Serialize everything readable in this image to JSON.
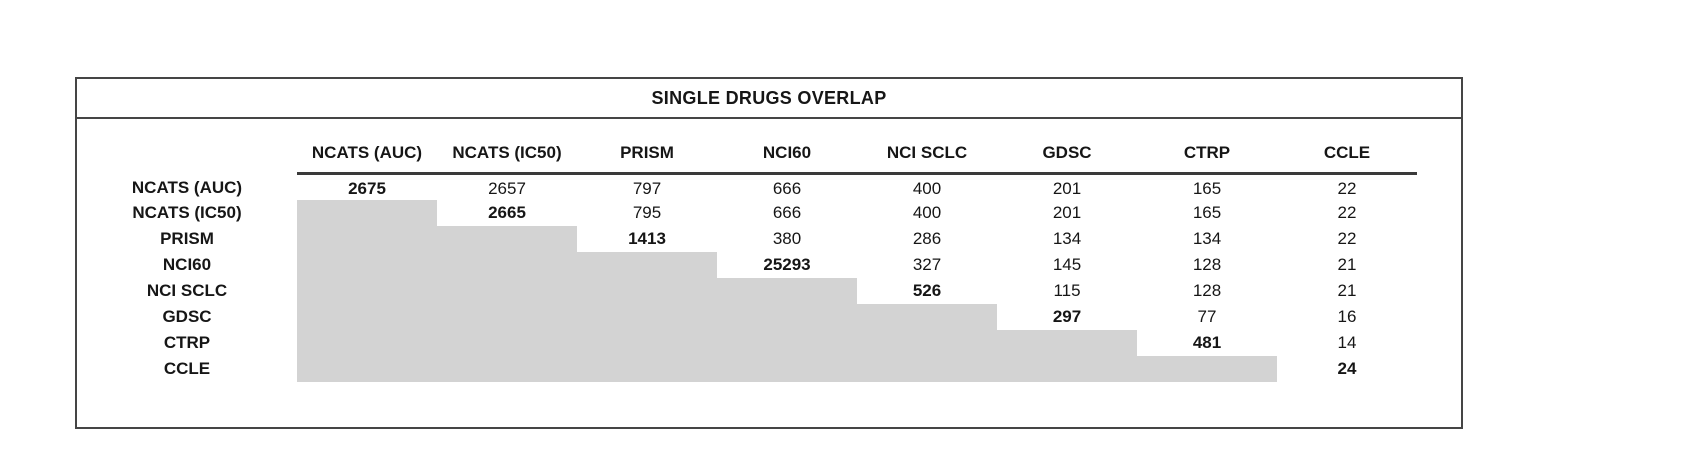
{
  "colors": {
    "shade": "#d3d3d3",
    "border": "#454545",
    "header_rule": "#3a3a3a"
  },
  "chart_data": {
    "type": "table",
    "title": "SINGLE DRUGS OVERLAP",
    "columns": [
      "NCATS (AUC)",
      "NCATS (IC50)",
      "PRISM",
      "NCI60",
      "NCI SCLC",
      "GDSC",
      "CTRP",
      "CCLE"
    ],
    "rows": [
      {
        "label": "NCATS (AUC)",
        "diagonal_index": 0,
        "values": [
          "2675",
          "2657",
          "797",
          "666",
          "400",
          "201",
          "165",
          "22"
        ]
      },
      {
        "label": "NCATS (IC50)",
        "diagonal_index": 1,
        "values": [
          "",
          "2665",
          "795",
          "666",
          "400",
          "201",
          "165",
          "22"
        ]
      },
      {
        "label": "PRISM",
        "diagonal_index": 2,
        "values": [
          "",
          "",
          "1413",
          "380",
          "286",
          "134",
          "134",
          "22"
        ]
      },
      {
        "label": "NCI60",
        "diagonal_index": 3,
        "values": [
          "",
          "",
          "",
          "25293",
          "327",
          "145",
          "128",
          "21"
        ]
      },
      {
        "label": "NCI SCLC",
        "diagonal_index": 4,
        "values": [
          "",
          "",
          "",
          "",
          "526",
          "115",
          "128",
          "21"
        ]
      },
      {
        "label": "GDSC",
        "diagonal_index": 5,
        "values": [
          "",
          "",
          "",
          "",
          "",
          "297",
          "77",
          "16"
        ]
      },
      {
        "label": "CTRP",
        "diagonal_index": 6,
        "values": [
          "",
          "",
          "",
          "",
          "",
          "",
          "481",
          "14"
        ]
      },
      {
        "label": "CCLE",
        "diagonal_index": 7,
        "values": [
          "",
          "",
          "",
          "",
          "",
          "",
          "",
          "24"
        ]
      }
    ],
    "layout": {
      "shaded_region": "lower-triangle",
      "diagonal_bold": true,
      "legend": "none",
      "grid": "off"
    }
  }
}
